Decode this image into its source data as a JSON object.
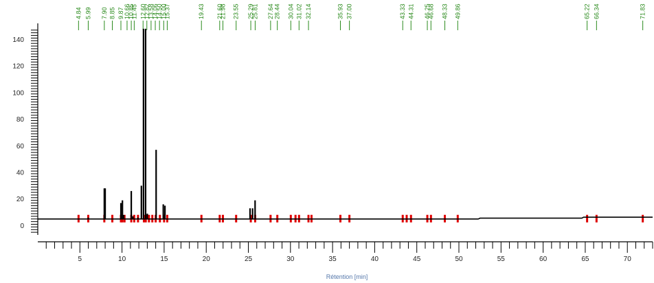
{
  "chart_data": {
    "type": "line",
    "title": "",
    "xlabel": "Rétention [min]",
    "ylabel": "",
    "xlim": [
      0,
      73
    ],
    "ylim": [
      -7,
      150
    ],
    "x_ticks": [
      5,
      10,
      15,
      20,
      25,
      30,
      35,
      40,
      45,
      50,
      55,
      60,
      65,
      70
    ],
    "y_ticks": [
      0,
      20,
      40,
      60,
      80,
      100,
      120,
      140
    ],
    "baseline": [
      {
        "x": 0,
        "y": 5
      },
      {
        "x": 52.3,
        "y": 5
      },
      {
        "x": 52.5,
        "y": 5.6
      },
      {
        "x": 64.6,
        "y": 5.6
      },
      {
        "x": 64.8,
        "y": 6.3
      },
      {
        "x": 73,
        "y": 6.3
      }
    ],
    "peaks": [
      {
        "x": 5.99,
        "y": 6
      },
      {
        "x": 7.9,
        "y": 28
      },
      {
        "x": 8.0,
        "y": 28
      },
      {
        "x": 9.87,
        "y": 17
      },
      {
        "x": 10.05,
        "y": 19
      },
      {
        "x": 10.2,
        "y": 8
      },
      {
        "x": 11.1,
        "y": 26
      },
      {
        "x": 11.3,
        "y": 7
      },
      {
        "x": 11.9,
        "y": 6
      },
      {
        "x": 12.3,
        "y": 30
      },
      {
        "x": 12.55,
        "y": 148
      },
      {
        "x": 12.8,
        "y": 148
      },
      {
        "x": 13.0,
        "y": 9
      },
      {
        "x": 14.05,
        "y": 57
      },
      {
        "x": 14.9,
        "y": 16
      },
      {
        "x": 15.1,
        "y": 15
      },
      {
        "x": 25.2,
        "y": 13
      },
      {
        "x": 25.5,
        "y": 13
      },
      {
        "x": 25.8,
        "y": 19
      }
    ],
    "integration_marks": [
      4.84,
      5.99,
      7.9,
      8.85,
      9.87,
      10.05,
      10.3,
      11.1,
      11.45,
      11.9,
      12.6,
      12.82,
      13.2,
      13.6,
      14.0,
      14.5,
      15.0,
      15.37,
      19.43,
      21.6,
      21.98,
      23.55,
      25.29,
      25.81,
      27.64,
      28.44,
      30.04,
      30.6,
      31.02,
      32.14,
      32.5,
      35.93,
      37.0,
      43.33,
      43.8,
      44.31,
      46.25,
      46.68,
      48.33,
      49.86,
      65.22,
      66.34,
      71.83
    ],
    "peak_labels": [
      {
        "x": 4.84,
        "text": "4.84"
      },
      {
        "x": 5.99,
        "text": "5.99"
      },
      {
        "x": 7.9,
        "text": "7.90"
      },
      {
        "x": 8.85,
        "text": "8.85"
      },
      {
        "x": 9.87,
        "text": "9.87"
      },
      {
        "x": 10.6,
        "text": "10.66"
      },
      {
        "x": 11.1,
        "text": "10.85"
      },
      {
        "x": 11.45,
        "text": "11.45"
      },
      {
        "x": 12.5,
        "text": "12.60"
      },
      {
        "x": 12.95,
        "text": "12.82"
      },
      {
        "x": 13.45,
        "text": "13.58"
      },
      {
        "x": 13.95,
        "text": "14.06"
      },
      {
        "x": 14.45,
        "text": "14.50"
      },
      {
        "x": 14.95,
        "text": "15.00"
      },
      {
        "x": 15.37,
        "text": "15.37"
      },
      {
        "x": 19.43,
        "text": "19.43"
      },
      {
        "x": 21.6,
        "text": "21.60"
      },
      {
        "x": 21.98,
        "text": "21.98"
      },
      {
        "x": 23.55,
        "text": "23.55"
      },
      {
        "x": 25.29,
        "text": "25.29"
      },
      {
        "x": 25.81,
        "text": "25.81"
      },
      {
        "x": 27.64,
        "text": "27.64"
      },
      {
        "x": 28.44,
        "text": "28.44"
      },
      {
        "x": 30.04,
        "text": "30.04"
      },
      {
        "x": 31.02,
        "text": "31.02"
      },
      {
        "x": 32.14,
        "text": "32.14"
      },
      {
        "x": 35.93,
        "text": "35.93"
      },
      {
        "x": 37.0,
        "text": "37.00"
      },
      {
        "x": 43.33,
        "text": "43.33"
      },
      {
        "x": 44.31,
        "text": "44.31"
      },
      {
        "x": 46.25,
        "text": "46.25"
      },
      {
        "x": 46.68,
        "text": "46.68"
      },
      {
        "x": 48.33,
        "text": "48.33"
      },
      {
        "x": 49.86,
        "text": "49.86"
      },
      {
        "x": 65.22,
        "text": "65.22"
      },
      {
        "x": 66.34,
        "text": "66.34"
      },
      {
        "x": 71.83,
        "text": "71.83"
      }
    ],
    "colors": {
      "trace": "#000000",
      "integration": "#dd0000",
      "labels": "#2a8a1c",
      "axis_title": "#5577aa",
      "axis": "#000000"
    },
    "grid": false,
    "legend": "none"
  }
}
